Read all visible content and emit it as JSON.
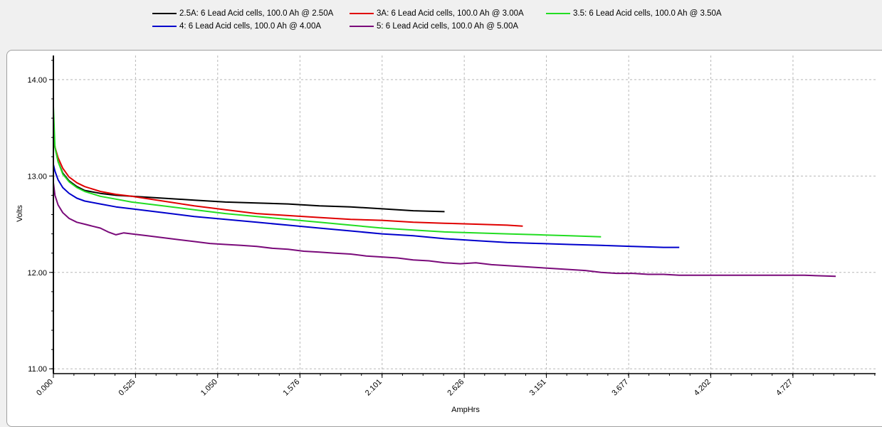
{
  "chart_data": {
    "type": "line",
    "title": "",
    "xlabel": "AmpHrs",
    "ylabel": "Volts",
    "xlim": [
      0,
      5.255
    ],
    "ylim": [
      10.95,
      14.25
    ],
    "grid": true,
    "legend_position": "top",
    "x_ticks": [
      "0.000",
      "0.525",
      "1.050",
      "1.576",
      "2.101",
      "2.626",
      "3.151",
      "3.677",
      "4.202",
      "4.727"
    ],
    "y_ticks": [
      "11.00",
      "12.00",
      "13.00",
      "14.00"
    ],
    "series": [
      {
        "name": "2.5A: 6 Lead Acid cells, 100.0 Ah @ 2.50A",
        "color": "#000000",
        "x": [
          0,
          0.01,
          0.03,
          0.06,
          0.1,
          0.15,
          0.2,
          0.3,
          0.4,
          0.5,
          0.7,
          0.9,
          1.1,
          1.3,
          1.5,
          1.7,
          1.9,
          2.1,
          2.3,
          2.5
        ],
        "y": [
          13.47,
          13.3,
          13.15,
          13.03,
          12.95,
          12.89,
          12.85,
          12.82,
          12.8,
          12.79,
          12.77,
          12.75,
          12.73,
          12.72,
          12.71,
          12.69,
          12.68,
          12.66,
          12.64,
          12.63
        ]
      },
      {
        "name": "3A: 6 Lead Acid cells, 100.0 Ah @ 3.00A",
        "color": "#e00000",
        "x": [
          0,
          0.01,
          0.03,
          0.06,
          0.1,
          0.15,
          0.2,
          0.3,
          0.4,
          0.5,
          0.7,
          0.9,
          1.1,
          1.3,
          1.5,
          1.7,
          1.9,
          2.1,
          2.3,
          2.5,
          2.7,
          2.9,
          3.0
        ],
        "y": [
          13.42,
          13.3,
          13.19,
          13.08,
          12.99,
          12.93,
          12.89,
          12.84,
          12.81,
          12.79,
          12.74,
          12.69,
          12.65,
          12.61,
          12.59,
          12.57,
          12.55,
          12.54,
          12.52,
          12.51,
          12.5,
          12.49,
          12.48
        ]
      },
      {
        "name": "3.5: 6 Lead Acid cells, 100.0 Ah @ 3.50A",
        "color": "#22dd22",
        "x": [
          0,
          0.01,
          0.03,
          0.06,
          0.1,
          0.15,
          0.2,
          0.3,
          0.4,
          0.5,
          0.7,
          0.9,
          1.1,
          1.3,
          1.5,
          1.7,
          1.9,
          2.1,
          2.3,
          2.5,
          2.7,
          2.9,
          3.1,
          3.3,
          3.5
        ],
        "y": [
          13.72,
          13.3,
          13.15,
          13.02,
          12.94,
          12.88,
          12.84,
          12.79,
          12.76,
          12.73,
          12.69,
          12.65,
          12.61,
          12.58,
          12.55,
          12.52,
          12.49,
          12.46,
          12.44,
          12.42,
          12.41,
          12.4,
          12.39,
          12.38,
          12.37
        ]
      },
      {
        "name": "4: 6 Lead Acid cells, 100.0 Ah @ 4.00A",
        "color": "#0000cc",
        "x": [
          0,
          0.01,
          0.03,
          0.06,
          0.1,
          0.15,
          0.2,
          0.3,
          0.4,
          0.5,
          0.7,
          0.9,
          1.1,
          1.3,
          1.5,
          1.7,
          1.9,
          2.1,
          2.3,
          2.5,
          2.7,
          2.9,
          3.1,
          3.3,
          3.5,
          3.7,
          3.9,
          4.0
        ],
        "y": [
          13.12,
          13.05,
          12.96,
          12.88,
          12.82,
          12.77,
          12.74,
          12.71,
          12.68,
          12.66,
          12.62,
          12.58,
          12.55,
          12.52,
          12.49,
          12.46,
          12.43,
          12.4,
          12.38,
          12.35,
          12.33,
          12.31,
          12.3,
          12.29,
          12.28,
          12.27,
          12.26,
          12.26
        ]
      },
      {
        "name": "5: 6 Lead Acid cells, 100.0 Ah @ 5.00A",
        "color": "#7a0a7a",
        "x": [
          0,
          0.01,
          0.03,
          0.06,
          0.1,
          0.15,
          0.2,
          0.25,
          0.3,
          0.35,
          0.4,
          0.45,
          0.5,
          0.6,
          0.7,
          0.8,
          0.9,
          1.0,
          1.1,
          1.2,
          1.3,
          1.4,
          1.5,
          1.6,
          1.7,
          1.8,
          1.9,
          2.0,
          2.1,
          2.2,
          2.3,
          2.4,
          2.5,
          2.6,
          2.7,
          2.8,
          2.9,
          3.0,
          3.1,
          3.2,
          3.3,
          3.4,
          3.5,
          3.6,
          3.7,
          3.8,
          3.9,
          4.0,
          4.2,
          4.4,
          4.6,
          4.8,
          5.0
        ],
        "y": [
          12.93,
          12.8,
          12.7,
          12.62,
          12.56,
          12.52,
          12.5,
          12.48,
          12.46,
          12.42,
          12.39,
          12.41,
          12.4,
          12.38,
          12.36,
          12.34,
          12.32,
          12.3,
          12.29,
          12.28,
          12.27,
          12.25,
          12.24,
          12.22,
          12.21,
          12.2,
          12.19,
          12.17,
          12.16,
          12.15,
          12.13,
          12.12,
          12.1,
          12.09,
          12.1,
          12.08,
          12.07,
          12.06,
          12.05,
          12.04,
          12.03,
          12.02,
          12.0,
          11.99,
          11.99,
          11.98,
          11.98,
          11.97,
          11.97,
          11.97,
          11.97,
          11.97,
          11.96
        ]
      }
    ]
  }
}
